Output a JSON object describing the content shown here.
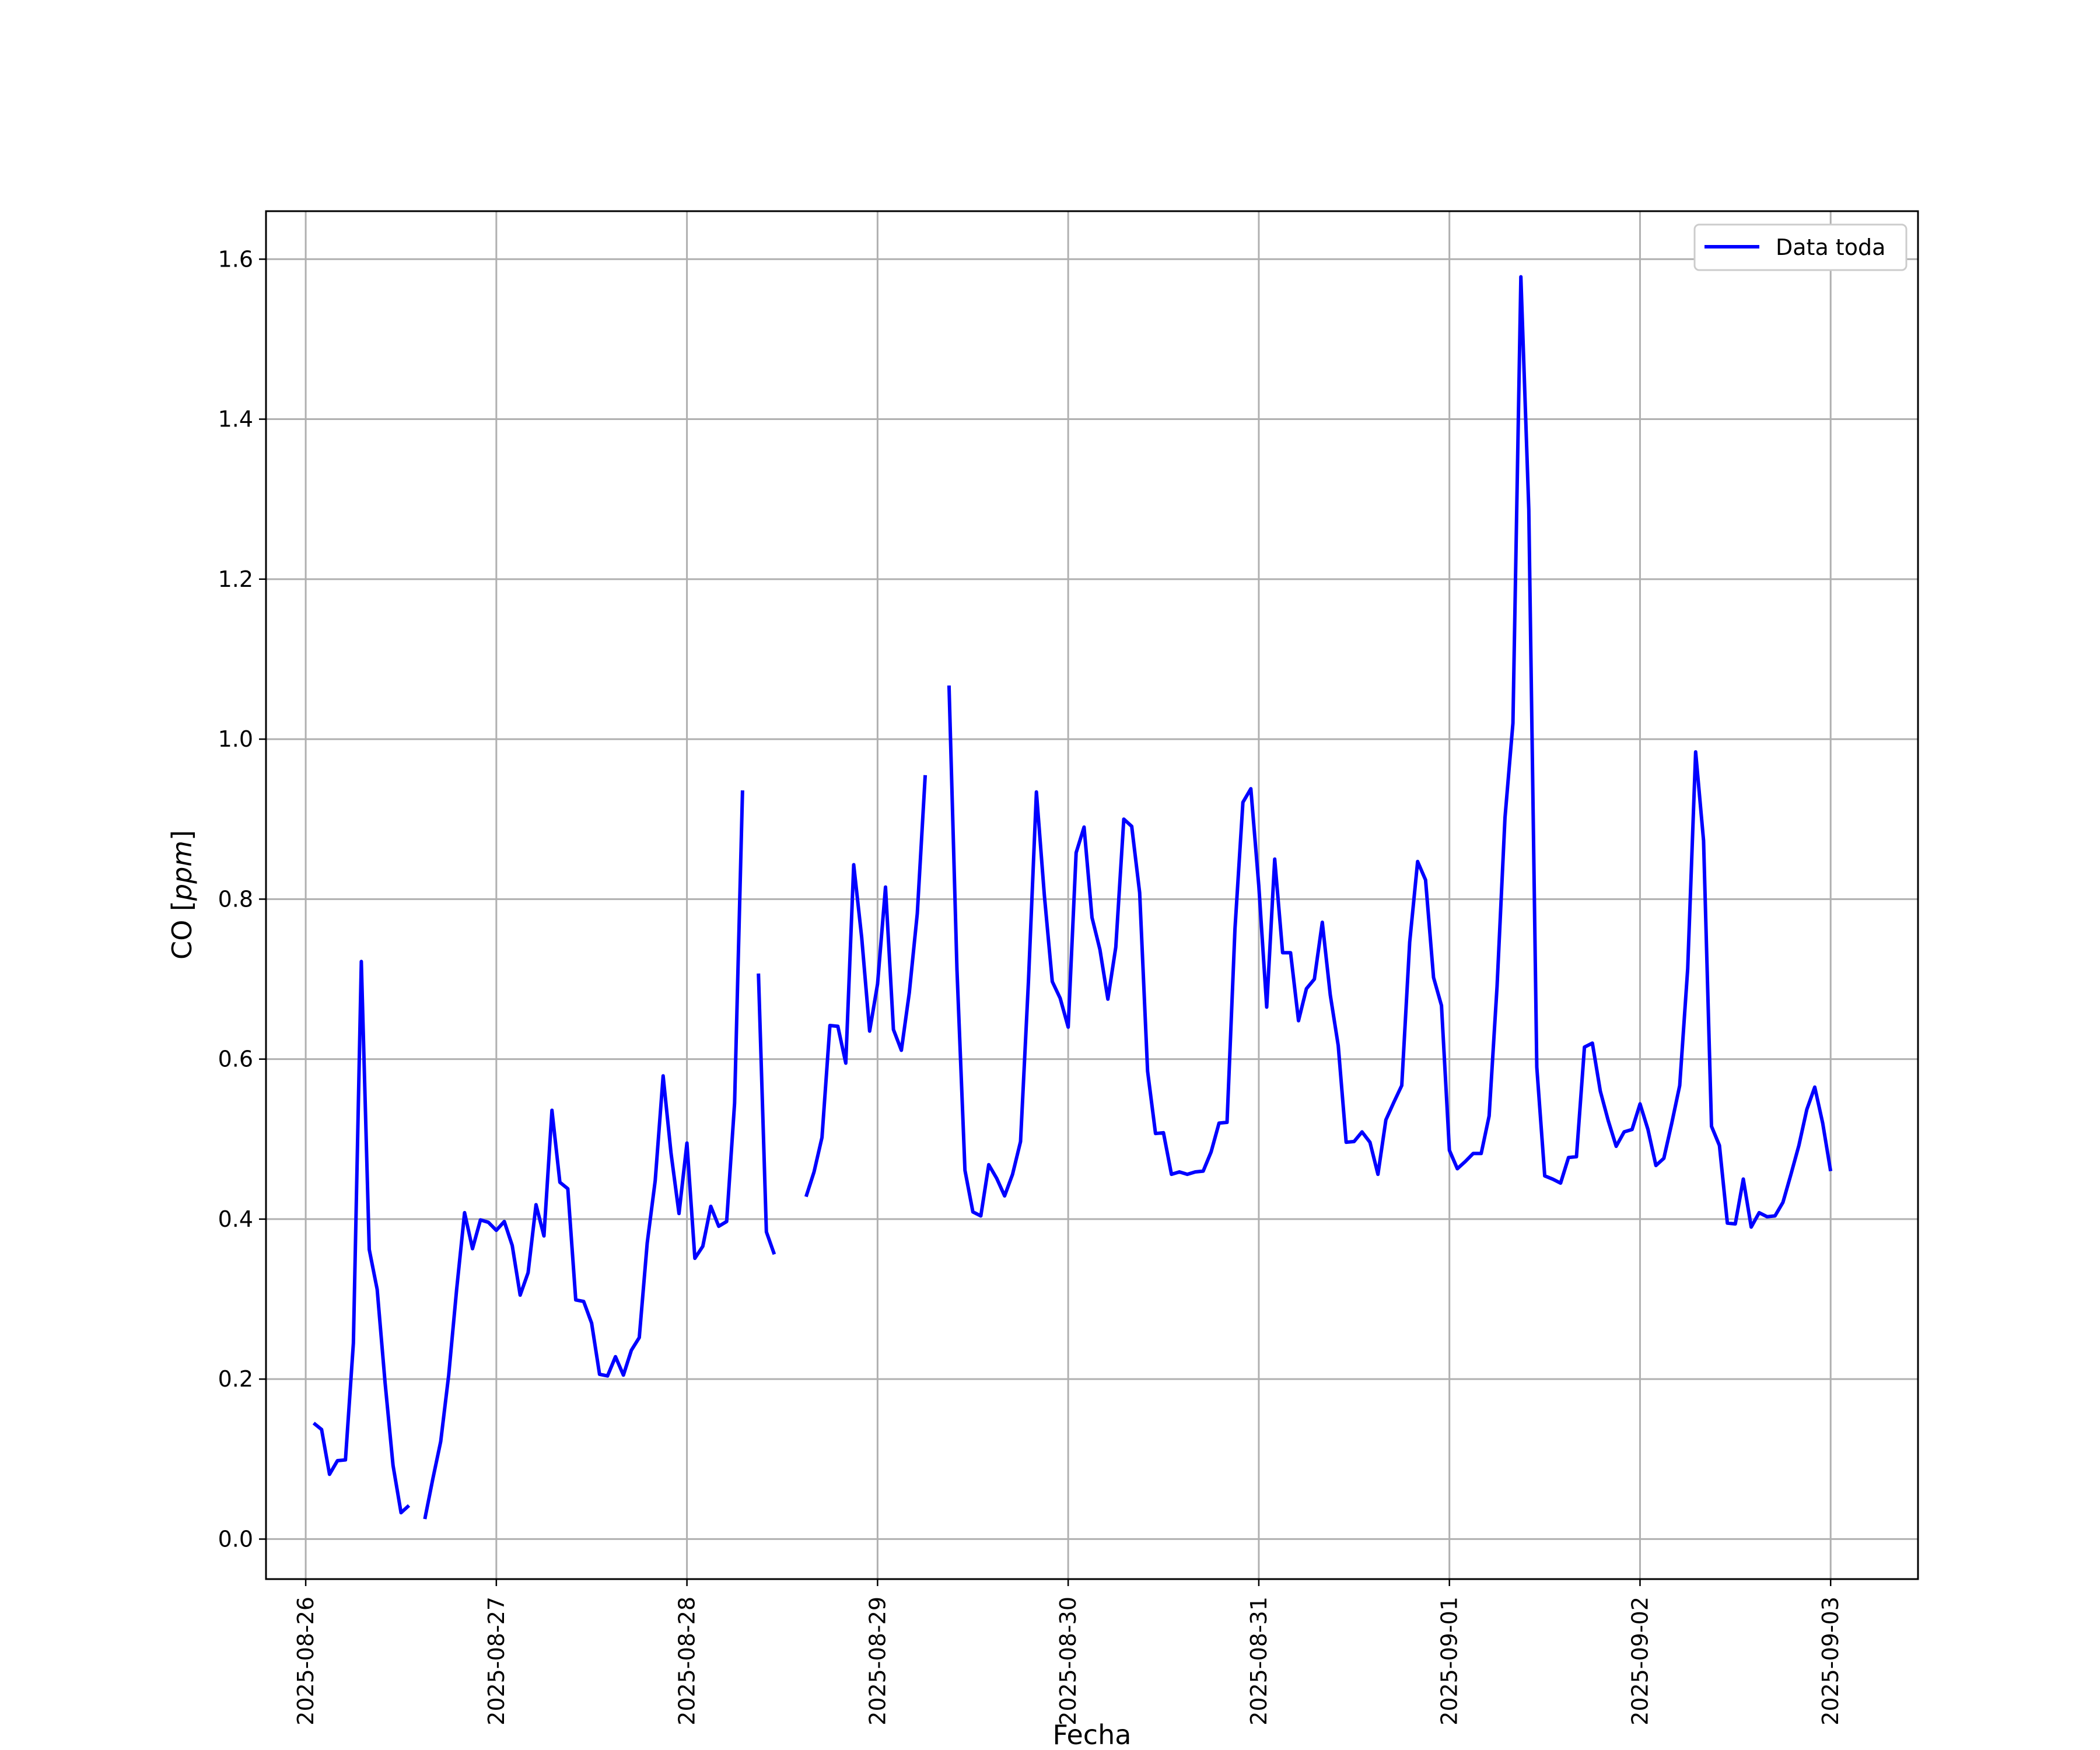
{
  "chart_data": {
    "type": "line",
    "title": "",
    "xlabel": "Fecha",
    "ylabel_prefix": "CO [",
    "ylabel_unit": "ppm",
    "ylabel_suffix": "]",
    "xlim": [
      "2025-08-25 19:00",
      "2025-09-03 11:00"
    ],
    "ylim": [
      -0.05,
      1.66
    ],
    "x_ticks": [
      "2025-08-26",
      "2025-08-27",
      "2025-08-28",
      "2025-08-29",
      "2025-08-30",
      "2025-08-31",
      "2025-09-01",
      "2025-09-02",
      "2025-09-03"
    ],
    "y_ticks": [
      0.0,
      0.2,
      0.4,
      0.6,
      0.8,
      1.0,
      1.2,
      1.4,
      1.6
    ],
    "y_tick_labels": [
      "0.0",
      "0.2",
      "0.4",
      "0.6",
      "0.8",
      "1.0",
      "1.2",
      "1.4",
      "1.6"
    ],
    "grid": true,
    "legend_position": "top-right",
    "series": [
      {
        "name": "Data toda",
        "color": "#0000ff",
        "segments": [
          [
            [
              "2025-08-26 01:00",
              0.145
            ],
            [
              "2025-08-26 02:00",
              0.137
            ],
            [
              "2025-08-26 03:00",
              0.081
            ],
            [
              "2025-08-26 04:00",
              0.098
            ],
            [
              "2025-08-26 05:00",
              0.099
            ],
            [
              "2025-08-26 06:00",
              0.245
            ],
            [
              "2025-08-26 07:00",
              0.722
            ],
            [
              "2025-08-26 08:00",
              0.362
            ],
            [
              "2025-08-26 09:00",
              0.312
            ],
            [
              "2025-08-26 10:00",
              0.195
            ],
            [
              "2025-08-26 11:00",
              0.092
            ],
            [
              "2025-08-26 12:00",
              0.033
            ],
            [
              "2025-08-26 13:00",
              0.042
            ]
          ],
          [
            [
              "2025-08-26 15:00",
              0.025
            ],
            [
              "2025-08-26 16:00",
              0.075
            ],
            [
              "2025-08-26 17:00",
              0.122
            ],
            [
              "2025-08-26 18:00",
              0.205
            ],
            [
              "2025-08-26 19:00",
              0.312
            ],
            [
              "2025-08-26 20:00",
              0.408
            ],
            [
              "2025-08-26 21:00",
              0.363
            ],
            [
              "2025-08-26 22:00",
              0.399
            ],
            [
              "2025-08-26 23:00",
              0.396
            ],
            [
              "2025-08-27 00:00",
              0.386
            ],
            [
              "2025-08-27 01:00",
              0.397
            ],
            [
              "2025-08-27 02:00",
              0.367
            ],
            [
              "2025-08-27 03:00",
              0.305
            ],
            [
              "2025-08-27 04:00",
              0.333
            ],
            [
              "2025-08-27 05:00",
              0.418
            ],
            [
              "2025-08-27 06:00",
              0.379
            ],
            [
              "2025-08-27 07:00",
              0.536
            ],
            [
              "2025-08-27 08:00",
              0.446
            ],
            [
              "2025-08-27 09:00",
              0.438
            ],
            [
              "2025-08-27 10:00",
              0.299
            ],
            [
              "2025-08-27 11:00",
              0.297
            ],
            [
              "2025-08-27 12:00",
              0.27
            ],
            [
              "2025-08-27 13:00",
              0.206
            ],
            [
              "2025-08-27 14:00",
              0.204
            ],
            [
              "2025-08-27 15:00",
              0.228
            ],
            [
              "2025-08-27 16:00",
              0.205
            ],
            [
              "2025-08-27 17:00",
              0.236
            ],
            [
              "2025-08-27 18:00",
              0.252
            ],
            [
              "2025-08-27 19:00",
              0.37
            ],
            [
              "2025-08-27 20:00",
              0.448
            ],
            [
              "2025-08-27 21:00",
              0.579
            ],
            [
              "2025-08-27 22:00",
              0.482
            ],
            [
              "2025-08-27 23:00",
              0.407
            ],
            [
              "2025-08-28 00:00",
              0.495
            ],
            [
              "2025-08-28 01:00",
              0.351
            ],
            [
              "2025-08-28 02:00",
              0.366
            ],
            [
              "2025-08-28 03:00",
              0.416
            ],
            [
              "2025-08-28 04:00",
              0.391
            ],
            [
              "2025-08-28 05:00",
              0.397
            ],
            [
              "2025-08-28 06:00",
              0.545
            ],
            [
              "2025-08-28 07:00",
              0.936
            ]
          ],
          [
            [
              "2025-08-28 09:00",
              0.707
            ],
            [
              "2025-08-28 10:00",
              0.384
            ],
            [
              "2025-08-28 11:00",
              0.356
            ]
          ],
          [
            [
              "2025-08-28 15:00",
              0.428
            ],
            [
              "2025-08-28 16:00",
              0.459
            ],
            [
              "2025-08-28 17:00",
              0.502
            ],
            [
              "2025-08-28 18:00",
              0.642
            ],
            [
              "2025-08-28 19:00",
              0.641
            ],
            [
              "2025-08-28 20:00",
              0.595
            ],
            [
              "2025-08-28 21:00",
              0.843
            ],
            [
              "2025-08-28 22:00",
              0.752
            ],
            [
              "2025-08-28 23:00",
              0.635
            ],
            [
              "2025-08-29 00:00",
              0.694
            ],
            [
              "2025-08-29 01:00",
              0.815
            ],
            [
              "2025-08-29 02:00",
              0.637
            ],
            [
              "2025-08-29 03:00",
              0.611
            ],
            [
              "2025-08-29 04:00",
              0.683
            ],
            [
              "2025-08-29 05:00",
              0.782
            ],
            [
              "2025-08-29 06:00",
              0.955
            ]
          ],
          [
            [
              "2025-08-29 09:00",
              1.067
            ],
            [
              "2025-08-29 10:00",
              0.712
            ],
            [
              "2025-08-29 11:00",
              0.461
            ],
            [
              "2025-08-29 12:00",
              0.409
            ],
            [
              "2025-08-29 13:00",
              0.404
            ],
            [
              "2025-08-29 14:00",
              0.468
            ],
            [
              "2025-08-29 15:00",
              0.451
            ],
            [
              "2025-08-29 16:00",
              0.429
            ],
            [
              "2025-08-29 17:00",
              0.456
            ],
            [
              "2025-08-29 18:00",
              0.497
            ],
            [
              "2025-08-29 19:00",
              0.698
            ],
            [
              "2025-08-29 20:00",
              0.934
            ],
            [
              "2025-08-29 21:00",
              0.805
            ],
            [
              "2025-08-29 22:00",
              0.697
            ],
            [
              "2025-08-29 23:00",
              0.676
            ],
            [
              "2025-08-30 00:00",
              0.64
            ],
            [
              "2025-08-30 01:00",
              0.858
            ],
            [
              "2025-08-30 02:00",
              0.89
            ],
            [
              "2025-08-30 03:00",
              0.777
            ],
            [
              "2025-08-30 04:00",
              0.737
            ],
            [
              "2025-08-30 05:00",
              0.675
            ],
            [
              "2025-08-30 06:00",
              0.74
            ],
            [
              "2025-08-30 07:00",
              0.9
            ],
            [
              "2025-08-30 08:00",
              0.891
            ],
            [
              "2025-08-30 09:00",
              0.808
            ],
            [
              "2025-08-30 10:00",
              0.585
            ],
            [
              "2025-08-30 11:00",
              0.507
            ],
            [
              "2025-08-30 12:00",
              0.508
            ],
            [
              "2025-08-30 13:00",
              0.456
            ],
            [
              "2025-08-30 14:00",
              0.459
            ],
            [
              "2025-08-30 15:00",
              0.456
            ],
            [
              "2025-08-30 16:00",
              0.459
            ],
            [
              "2025-08-30 17:00",
              0.46
            ],
            [
              "2025-08-30 18:00",
              0.484
            ],
            [
              "2025-08-30 19:00",
              0.52
            ],
            [
              "2025-08-30 20:00",
              0.521
            ],
            [
              "2025-08-30 21:00",
              0.763
            ],
            [
              "2025-08-30 22:00",
              0.921
            ],
            [
              "2025-08-30 23:00",
              0.938
            ],
            [
              "2025-08-31 00:00",
              0.817
            ],
            [
              "2025-08-31 01:00",
              0.665
            ],
            [
              "2025-08-31 02:00",
              0.85
            ],
            [
              "2025-08-31 03:00",
              0.733
            ],
            [
              "2025-08-31 04:00",
              0.733
            ],
            [
              "2025-08-31 05:00",
              0.648
            ],
            [
              "2025-08-31 06:00",
              0.688
            ],
            [
              "2025-08-31 07:00",
              0.7
            ],
            [
              "2025-08-31 08:00",
              0.771
            ],
            [
              "2025-08-31 09:00",
              0.68
            ],
            [
              "2025-08-31 10:00",
              0.617
            ],
            [
              "2025-08-31 11:00",
              0.496
            ],
            [
              "2025-08-31 12:00",
              0.497
            ],
            [
              "2025-08-31 13:00",
              0.509
            ],
            [
              "2025-08-31 14:00",
              0.496
            ],
            [
              "2025-08-31 15:00",
              0.456
            ],
            [
              "2025-08-31 16:00",
              0.524
            ],
            [
              "2025-08-31 17:00",
              0.546
            ],
            [
              "2025-08-31 18:00",
              0.567
            ],
            [
              "2025-08-31 19:00",
              0.746
            ],
            [
              "2025-08-31 20:00",
              0.847
            ],
            [
              "2025-08-31 21:00",
              0.824
            ],
            [
              "2025-08-31 22:00",
              0.702
            ],
            [
              "2025-08-31 23:00",
              0.667
            ],
            [
              "2025-09-01 00:00",
              0.486
            ],
            [
              "2025-09-01 01:00",
              0.463
            ],
            [
              "2025-09-01 02:00",
              0.472
            ],
            [
              "2025-09-01 03:00",
              0.482
            ],
            [
              "2025-09-01 04:00",
              0.482
            ],
            [
              "2025-09-01 05:00",
              0.529
            ],
            [
              "2025-09-01 06:00",
              0.691
            ],
            [
              "2025-09-01 07:00",
              0.902
            ],
            [
              "2025-09-01 08:00",
              1.02
            ],
            [
              "2025-09-01 09:00",
              1.578
            ],
            [
              "2025-09-01 10:00",
              1.287
            ],
            [
              "2025-09-01 11:00",
              0.59
            ],
            [
              "2025-09-01 12:00",
              0.454
            ],
            [
              "2025-09-01 13:00",
              0.45
            ],
            [
              "2025-09-01 14:00",
              0.445
            ],
            [
              "2025-09-01 15:00",
              0.477
            ],
            [
              "2025-09-01 16:00",
              0.478
            ],
            [
              "2025-09-01 17:00",
              0.615
            ],
            [
              "2025-09-01 18:00",
              0.62
            ],
            [
              "2025-09-01 19:00",
              0.56
            ],
            [
              "2025-09-01 20:00",
              0.523
            ],
            [
              "2025-09-01 21:00",
              0.491
            ],
            [
              "2025-09-01 22:00",
              0.509
            ],
            [
              "2025-09-01 23:00",
              0.512
            ],
            [
              "2025-09-02 00:00",
              0.544
            ],
            [
              "2025-09-02 01:00",
              0.512
            ],
            [
              "2025-09-02 02:00",
              0.467
            ],
            [
              "2025-09-02 03:00",
              0.476
            ],
            [
              "2025-09-02 04:00",
              0.52
            ],
            [
              "2025-09-02 05:00",
              0.567
            ],
            [
              "2025-09-02 06:00",
              0.713
            ],
            [
              "2025-09-02 07:00",
              0.984
            ],
            [
              "2025-09-02 08:00",
              0.873
            ],
            [
              "2025-09-02 09:00",
              0.516
            ],
            [
              "2025-09-02 10:00",
              0.492
            ],
            [
              "2025-09-02 11:00",
              0.395
            ],
            [
              "2025-09-02 12:00",
              0.394
            ],
            [
              "2025-09-02 13:00",
              0.45
            ],
            [
              "2025-09-02 14:00",
              0.39
            ],
            [
              "2025-09-02 15:00",
              0.408
            ],
            [
              "2025-09-02 16:00",
              0.403
            ],
            [
              "2025-09-02 17:00",
              0.404
            ],
            [
              "2025-09-02 18:00",
              0.421
            ],
            [
              "2025-09-02 19:00",
              0.456
            ],
            [
              "2025-09-02 20:00",
              0.492
            ],
            [
              "2025-09-02 21:00",
              0.537
            ],
            [
              "2025-09-02 22:00",
              0.565
            ],
            [
              "2025-09-02 23:00",
              0.52
            ],
            [
              "2025-09-03 00:00",
              0.46
            ]
          ]
        ]
      }
    ]
  }
}
